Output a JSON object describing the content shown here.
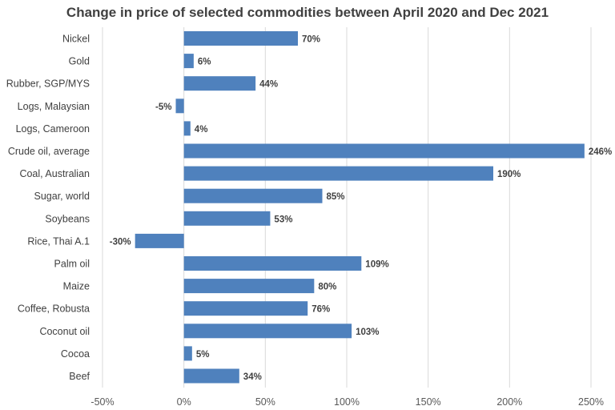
{
  "chart_data": {
    "type": "bar",
    "orientation": "horizontal",
    "title": "Change in price of selected commodities between April 2020 and Dec 2021",
    "categories": [
      "Nickel",
      "Gold",
      "Rubber, SGP/MYS",
      "Logs, Malaysian",
      "Logs, Cameroon",
      "Crude oil, average",
      "Coal, Australian",
      "Sugar, world",
      "Soybeans",
      "Rice, Thai A.1",
      "Palm oil",
      "Maize",
      "Coffee, Robusta",
      "Coconut oil",
      "Cocoa",
      "Beef"
    ],
    "values": [
      70,
      6,
      44,
      -5,
      4,
      246,
      190,
      85,
      53,
      -30,
      109,
      80,
      76,
      103,
      5,
      34
    ],
    "data_labels": [
      "70%",
      "6%",
      "44%",
      "-5%",
      "4%",
      "246%",
      "190%",
      "85%",
      "53%",
      "-30%",
      "109%",
      "80%",
      "76%",
      "103%",
      "5%",
      "34%"
    ],
    "xlim": [
      -50,
      250
    ],
    "xticks": [
      -50,
      0,
      50,
      100,
      150,
      200,
      250
    ],
    "xtick_labels": [
      "-50%",
      "0%",
      "50%",
      "100%",
      "150%",
      "200%",
      "250%"
    ],
    "xlabel": "",
    "ylabel": "",
    "grid": "vertical",
    "legend": "none",
    "bar_color": "#4f81bd",
    "grid_color": "#d9d9d9"
  }
}
